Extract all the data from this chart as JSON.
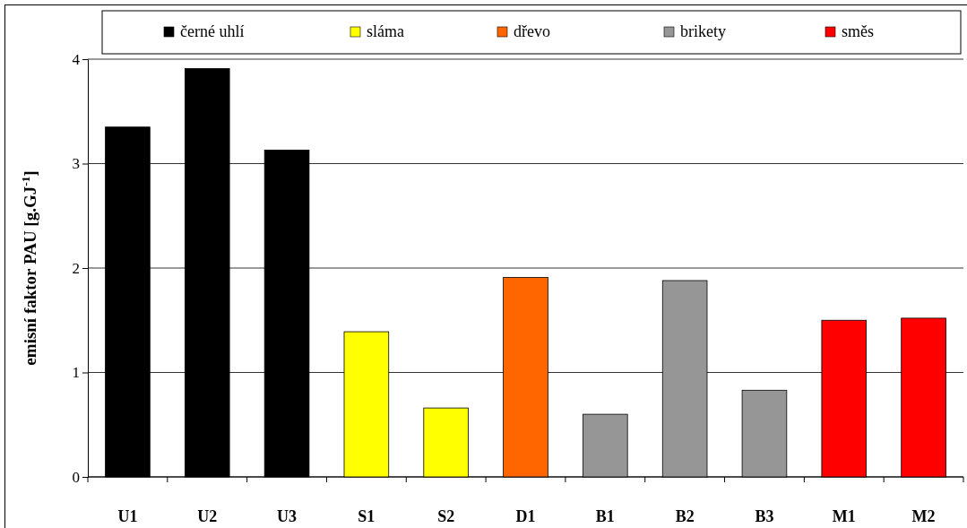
{
  "chart_data": {
    "type": "bar",
    "ylabel": "emisní faktor PAU [g.GJ$^{-1}$]",
    "categories": [
      "U1",
      "U2",
      "U3",
      "S1",
      "S2",
      "D1",
      "B1",
      "B2",
      "B3",
      "M1",
      "M2"
    ],
    "series": [
      {
        "name": "černé uhlí",
        "color": "#000000",
        "values": [
          3.35,
          3.91,
          3.13,
          null,
          null,
          null,
          null,
          null,
          null,
          null,
          null
        ]
      },
      {
        "name": "sláma",
        "color": "#ffff00",
        "values": [
          null,
          null,
          null,
          1.39,
          0.66,
          null,
          null,
          null,
          null,
          null,
          null
        ]
      },
      {
        "name": "dřevo",
        "color": "#ff6600",
        "values": [
          null,
          null,
          null,
          null,
          null,
          1.91,
          null,
          null,
          null,
          null,
          null
        ]
      },
      {
        "name": "brikety",
        "color": "#969696",
        "values": [
          null,
          null,
          null,
          null,
          null,
          null,
          0.6,
          1.88,
          0.83,
          null,
          null
        ]
      },
      {
        "name": "směs",
        "color": "#ff0000",
        "values": [
          null,
          null,
          null,
          null,
          null,
          null,
          null,
          null,
          null,
          1.5,
          1.52
        ]
      }
    ],
    "ylim": [
      0,
      4
    ],
    "yticks": [
      0,
      1,
      2,
      3,
      4
    ],
    "grid": "y",
    "legend": "top"
  }
}
